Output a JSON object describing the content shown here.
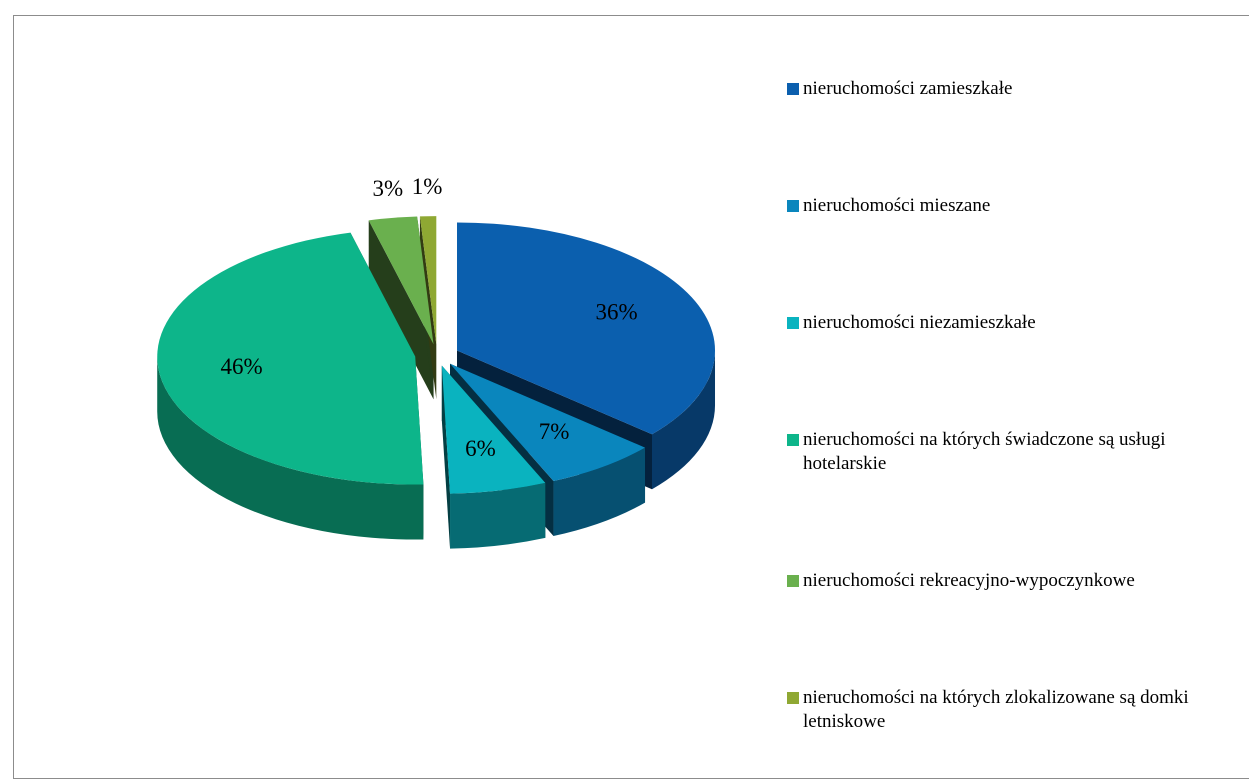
{
  "chart_data": {
    "type": "pie",
    "categories": [
      "nieruchomości zamieszkałe",
      "nieruchomości mieszane",
      "nieruchomości niezamieszkałe",
      "nieruchomości na których świadczone są usługi hotelarskie",
      "nieruchomości rekreacyjno-wypoczynkowe",
      "nieruchomości na których zlokalizowane są domki letniskowe"
    ],
    "values": [
      36,
      7,
      6,
      46,
      3,
      1
    ],
    "value_labels": [
      "36%",
      "7%",
      "6%",
      "46%",
      "3%",
      "1%"
    ],
    "colors": [
      "#0b5fae",
      "#0a86bd",
      "#0ab3bf",
      "#0db58a",
      "#6ab04e",
      "#8fa833"
    ],
    "legend": "right"
  }
}
